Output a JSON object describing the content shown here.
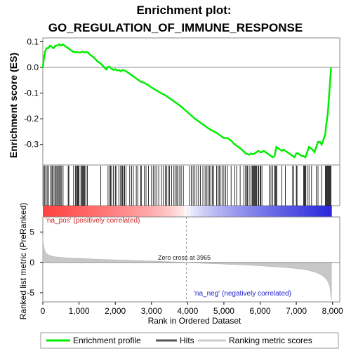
{
  "chart_data": {
    "type": "line",
    "title_line1": "Enrichment plot:",
    "title_line2": "GO_REGULATION_OF_IMMUNE_RESPONSE",
    "top_panel": {
      "ylabel": "Enrichment score (ES)",
      "ylim": [
        -0.38,
        0.115
      ],
      "yticks": [
        0.1,
        0.0,
        -0.1,
        -0.2,
        -0.3
      ],
      "ytick_labels": [
        "0.1",
        "0.0",
        "-0.1",
        "-0.2",
        "-0.3"
      ],
      "series": [
        {
          "name": "Enrichment profile",
          "color": "#00ee00",
          "x": [
            0,
            30,
            60,
            100,
            150,
            200,
            250,
            300,
            350,
            400,
            450,
            500,
            550,
            600,
            650,
            700,
            750,
            800,
            850,
            900,
            950,
            1000,
            1050,
            1100,
            1150,
            1200,
            1250,
            1300,
            1400,
            1500,
            1600,
            1700,
            1750,
            1800,
            1850,
            1900,
            1950,
            2000,
            2050,
            2100,
            2150,
            2200,
            2250,
            2300,
            2400,
            2500,
            2600,
            2700,
            2800,
            2900,
            3000,
            3200,
            3400,
            3600,
            3800,
            4000,
            4200,
            4400,
            4600,
            4800,
            4900,
            5000,
            5100,
            5200,
            5300,
            5400,
            5500,
            5600,
            5700,
            5750,
            5800,
            5850,
            5900,
            5950,
            6000,
            6050,
            6100,
            6150,
            6200,
            6250,
            6300,
            6350,
            6400,
            6450,
            6500,
            6550,
            6600,
            6650,
            6700,
            6750,
            6800,
            6850,
            6900,
            6950,
            7000,
            7050,
            7100,
            7150,
            7200,
            7250,
            7300,
            7350,
            7400,
            7450,
            7500,
            7550,
            7600,
            7650,
            7700,
            7750,
            7800,
            7820,
            7840,
            7860,
            7880,
            7900,
            7920,
            7940,
            7960
          ],
          "y": [
            0.0,
            0.035,
            0.06,
            0.075,
            0.075,
            0.085,
            0.08,
            0.075,
            0.085,
            0.085,
            0.09,
            0.085,
            0.09,
            0.085,
            0.08,
            0.075,
            0.07,
            0.065,
            0.06,
            0.06,
            0.06,
            0.058,
            0.058,
            0.062,
            0.058,
            0.06,
            0.058,
            0.05,
            0.04,
            0.025,
            0.015,
            0.0,
            -0.008,
            0.002,
            0.002,
            -0.005,
            -0.01,
            -0.007,
            -0.012,
            -0.01,
            -0.015,
            -0.01,
            -0.012,
            -0.015,
            -0.025,
            -0.035,
            -0.045,
            -0.055,
            -0.06,
            -0.068,
            -0.078,
            -0.095,
            -0.11,
            -0.13,
            -0.15,
            -0.175,
            -0.2,
            -0.22,
            -0.24,
            -0.255,
            -0.265,
            -0.275,
            -0.275,
            -0.285,
            -0.3,
            -0.31,
            -0.32,
            -0.335,
            -0.34,
            -0.335,
            -0.338,
            -0.335,
            -0.33,
            -0.325,
            -0.33,
            -0.33,
            -0.325,
            -0.33,
            -0.335,
            -0.34,
            -0.345,
            -0.35,
            -0.345,
            -0.31,
            -0.315,
            -0.32,
            -0.325,
            -0.32,
            -0.325,
            -0.33,
            -0.335,
            -0.34,
            -0.345,
            -0.35,
            -0.335,
            -0.335,
            -0.34,
            -0.345,
            -0.345,
            -0.35,
            -0.33,
            -0.31,
            -0.315,
            -0.32,
            -0.33,
            -0.31,
            -0.29,
            -0.29,
            -0.3,
            -0.28,
            -0.26,
            -0.23,
            -0.21,
            -0.19,
            -0.16,
            -0.12,
            -0.08,
            -0.04,
            0.0
          ]
        }
      ]
    },
    "bottom_panel": {
      "ylabel": "Ranked list metric (PreRanked)",
      "xlabel": "Rank in Ordered Dataset",
      "ylim": [
        -6.5,
        7.5
      ],
      "yticks": [
        5,
        0,
        -5
      ],
      "ytick_labels": [
        "5",
        "0",
        "-5"
      ],
      "zero_cross_label": "Zero cross at 3965",
      "zero_cross": 3965,
      "pos_label": "'na_pos' (positively correlated)",
      "neg_label": "'na_neg' (negatively correlated)",
      "series": [
        {
          "name": "Ranking metric scores",
          "color": "#bbbbbb",
          "x": [
            0,
            10,
            30,
            60,
            100,
            200,
            300,
            500,
            800,
            1200,
            1600,
            2000,
            2400,
            2800,
            3200,
            3600,
            3965,
            4400,
            4800,
            5200,
            5600,
            6000,
            6400,
            6800,
            7100,
            7300,
            7500,
            7650,
            7750,
            7850,
            7900,
            7930,
            7950,
            7970
          ],
          "y": [
            4.4,
            3.3,
            2.5,
            1.8,
            1.4,
            1.1,
            0.95,
            0.82,
            0.7,
            0.6,
            0.5,
            0.42,
            0.35,
            0.27,
            0.18,
            0.09,
            0.0,
            -0.12,
            -0.22,
            -0.32,
            -0.42,
            -0.55,
            -0.7,
            -0.88,
            -1.05,
            -1.25,
            -1.55,
            -1.9,
            -2.3,
            -2.9,
            -3.5,
            -4.1,
            -5.2,
            -6.2
          ]
        }
      ]
    },
    "xaxis": {
      "xlim": [
        0,
        8200
      ],
      "xticks": [
        0,
        1000,
        2000,
        3000,
        4000,
        5000,
        6000,
        7000,
        8000
      ],
      "xtick_labels": [
        "0",
        "1,000",
        "2,000",
        "3,000",
        "4,000",
        "5,000",
        "6,000",
        "7,000",
        "8,000"
      ]
    },
    "hits": [
      30,
      55,
      90,
      120,
      160,
      210,
      250,
      270,
      310,
      350,
      370,
      400,
      430,
      460,
      490,
      520,
      560,
      700,
      720,
      850,
      900,
      930,
      950,
      970,
      990,
      1000,
      1050,
      1080,
      1100,
      1120,
      1140,
      1160,
      1190,
      1230,
      1600,
      1800,
      1850,
      1870,
      1900,
      1950,
      2000,
      2020,
      2100,
      2150,
      2170,
      2200,
      2240,
      2260,
      2300,
      2400,
      2450,
      2500,
      2580,
      2620,
      2700,
      2720,
      2800,
      2850,
      2920,
      3000,
      3050,
      3100,
      3150,
      3200,
      3280,
      3330,
      3380,
      3420,
      3460,
      3500,
      3560,
      3620,
      3650,
      3700,
      3730,
      3780,
      3820,
      3880,
      4050,
      4100,
      4150,
      4200,
      4250,
      4300,
      4350,
      4420,
      4480,
      4520,
      4560,
      4600,
      4640,
      4680,
      4720,
      4800,
      4840,
      4870,
      4900,
      4950,
      5000,
      5050,
      5100,
      5200,
      5300,
      5350,
      5450,
      5550,
      5600,
      5620,
      5650,
      5700,
      5750,
      5780,
      5800,
      5820,
      5840,
      5860,
      5880,
      5900,
      5940,
      5960,
      6000,
      6020,
      6050,
      6250,
      6300,
      6350,
      6400,
      6420,
      6440,
      6460,
      6600,
      6700,
      6900,
      6920,
      7000,
      7020,
      7200,
      7220,
      7240,
      7260,
      7300,
      7350,
      7420,
      7550,
      7600,
      7700,
      7800,
      7820,
      7840,
      7860,
      7880,
      7900,
      7920,
      7940,
      7960
    ],
    "legend": [
      {
        "label": "Enrichment profile",
        "color": "#00ee00"
      },
      {
        "label": "Hits",
        "color": "#555555"
      },
      {
        "label": "Ranking metric scores",
        "color": "#cccccc"
      }
    ]
  }
}
